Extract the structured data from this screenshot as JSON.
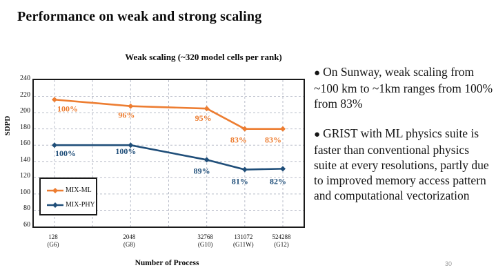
{
  "slide": {
    "title": "Performance on weak and strong scaling",
    "page_number": "30"
  },
  "chart_data": {
    "type": "line",
    "title": "Weak scaling (~320 model cells per rank)",
    "xlabel": "Number of Process",
    "ylabel": "SDPD",
    "x_scale": "log2",
    "x": [
      128,
      2048,
      32768,
      131072,
      524288
    ],
    "x_tick_labels": [
      [
        "128",
        "(G6)"
      ],
      [
        "2048",
        "(G8)"
      ],
      [
        "32768",
        "(G10)"
      ],
      [
        "131072",
        "(G11W)"
      ],
      [
        "524288",
        "(G12)"
      ]
    ],
    "y_ticks": [
      240,
      220,
      200,
      180,
      160,
      140,
      120,
      100,
      80,
      60
    ],
    "ylim": [
      60,
      240
    ],
    "grid": "light dashed gridlines, horizontal every 20 SDPD, vertical every 2 powers of 2",
    "legend_position": "lower-left inside plot",
    "series": [
      {
        "name": "MIX-ML",
        "color": "#ED7D31",
        "values": [
          216,
          208,
          205,
          180,
          180
        ],
        "point_labels": [
          "100%",
          "96%",
          "95%",
          "83%",
          "83%"
        ]
      },
      {
        "name": "MIX-PHY",
        "color": "#1F4E79",
        "values": [
          160,
          160,
          142,
          130,
          131
        ],
        "point_labels": [
          "100%",
          "100%",
          "89%",
          "81%",
          "82%"
        ]
      }
    ]
  },
  "notes": {
    "bullet_glyph": "●",
    "bullets": [
      {
        "text": "On Sunway, weak scaling from ~100 km to ~1km ranges from 100%  from 83%"
      },
      {
        "text": "GRIST with ML physics suite is faster than conventional physics suite at every resolutions, partly due to improved memory access pattern and computational vectorization"
      }
    ]
  },
  "colors": {
    "series_ml": "#ED7D31",
    "series_phy": "#1F4E79",
    "grid": "#b9bdc9",
    "plot_border": "#1a1a1a",
    "page_number": "#9b9b9b"
  }
}
